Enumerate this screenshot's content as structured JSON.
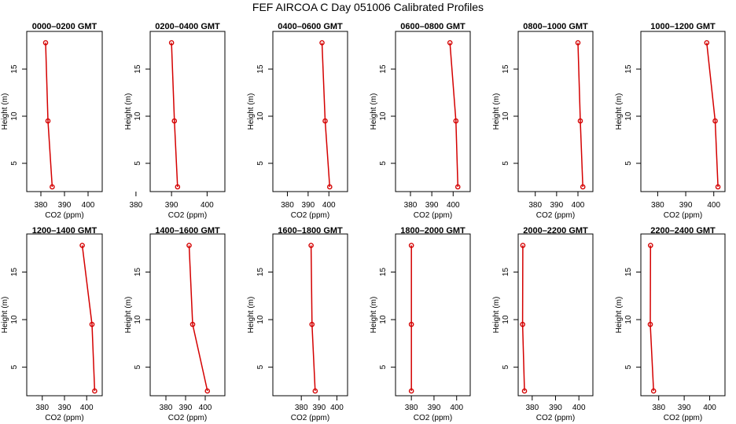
{
  "figure_title": "FEF AIRCOA C  Day 051006  Calibrated Profiles",
  "chart_data": [
    {
      "type": "line",
      "title": "0000–0200 GMT",
      "xlabel": "CO2 (ppm)",
      "ylabel": "Height (m)",
      "xlim": [
        374,
        406
      ],
      "ylim": [
        2,
        19
      ],
      "xticks": [
        "380",
        "390",
        "400"
      ],
      "yticks": [
        "5",
        "10",
        "15"
      ],
      "grid": false,
      "series": [
        {
          "x": [
            382.0,
            383.0,
            384.8
          ],
          "y": [
            17.8,
            9.5,
            2.5
          ]
        }
      ]
    },
    {
      "type": "line",
      "title": "0200–0400 GMT",
      "xlabel": "CO2 (ppm)",
      "ylabel": "Height (m)",
      "xlim": [
        384,
        405
      ],
      "ylim": [
        2,
        19
      ],
      "xticks": [
        "380",
        "390",
        "400"
      ],
      "yticks": [
        "5",
        "10",
        "15"
      ],
      "grid": false,
      "series": [
        {
          "x": [
            390.0,
            390.8,
            391.7
          ],
          "y": [
            17.8,
            9.5,
            2.5
          ]
        }
      ]
    },
    {
      "type": "line",
      "title": "0400–0600 GMT",
      "xlabel": "CO2 (ppm)",
      "ylabel": "Height (m)",
      "xlim": [
        373,
        409
      ],
      "ylim": [
        2,
        19
      ],
      "xticks": [
        "380",
        "390",
        "400"
      ],
      "yticks": [
        "5",
        "10",
        "15"
      ],
      "grid": false,
      "series": [
        {
          "x": [
            396.7,
            398.2,
            400.4
          ],
          "y": [
            17.8,
            9.5,
            2.5
          ]
        }
      ]
    },
    {
      "type": "line",
      "title": "0600–0800 GMT",
      "xlabel": "CO2 (ppm)",
      "ylabel": "Height (m)",
      "xlim": [
        373,
        408
      ],
      "ylim": [
        2,
        19
      ],
      "xticks": [
        "380",
        "390",
        "400"
      ],
      "yticks": [
        "5",
        "10",
        "15"
      ],
      "grid": false,
      "series": [
        {
          "x": [
            398.5,
            401.3,
            402.2
          ],
          "y": [
            17.8,
            9.5,
            2.5
          ]
        }
      ]
    },
    {
      "type": "line",
      "title": "0800–1000 GMT",
      "xlabel": "CO2 (ppm)",
      "ylabel": "Height (m)",
      "xlim": [
        372,
        407
      ],
      "ylim": [
        2,
        19
      ],
      "xticks": [
        "380",
        "390",
        "400"
      ],
      "yticks": [
        "5",
        "10",
        "15"
      ],
      "grid": false,
      "series": [
        {
          "x": [
            400.0,
            401.1,
            402.3
          ],
          "y": [
            17.8,
            9.5,
            2.5
          ]
        }
      ]
    },
    {
      "type": "line",
      "title": "1000–1200 GMT",
      "xlabel": "CO2 (ppm)",
      "ylabel": "Height (m)",
      "xlim": [
        374,
        404
      ],
      "ylim": [
        2,
        19
      ],
      "xticks": [
        "380",
        "390",
        "400"
      ],
      "yticks": [
        "5",
        "10",
        "15"
      ],
      "grid": false,
      "series": [
        {
          "x": [
            397.5,
            400.5,
            401.5
          ],
          "y": [
            17.8,
            9.5,
            2.5
          ]
        }
      ]
    },
    {
      "type": "line",
      "title": "1200–1400 GMT",
      "xlabel": "CO2 (ppm)",
      "ylabel": "Height (m)",
      "xlim": [
        373,
        407
      ],
      "ylim": [
        2,
        19
      ],
      "xticks": [
        "380",
        "390",
        "400"
      ],
      "yticks": [
        "5",
        "10",
        "15"
      ],
      "grid": false,
      "series": [
        {
          "x": [
            398.0,
            402.4,
            403.6
          ],
          "y": [
            17.8,
            9.5,
            2.5
          ]
        }
      ]
    },
    {
      "type": "line",
      "title": "1400–1600 GMT",
      "xlabel": "CO2 (ppm)",
      "ylabel": "Height (m)",
      "xlim": [
        372,
        410
      ],
      "ylim": [
        2,
        19
      ],
      "xticks": [
        "380",
        "390",
        "400"
      ],
      "yticks": [
        "5",
        "10",
        "15"
      ],
      "grid": false,
      "series": [
        {
          "x": [
            391.8,
            393.6,
            401.1
          ],
          "y": [
            17.8,
            9.5,
            2.5
          ]
        }
      ]
    },
    {
      "type": "line",
      "title": "1600–1800 GMT",
      "xlabel": "CO2 (ppm)",
      "ylabel": "Height (m)",
      "xlim": [
        364,
        406
      ],
      "ylim": [
        2,
        19
      ],
      "xticks": [
        "380",
        "390",
        "400"
      ],
      "yticks": [
        "5",
        "10",
        "15"
      ],
      "grid": false,
      "series": [
        {
          "x": [
            385.5,
            386.0,
            387.8
          ],
          "y": [
            17.8,
            9.5,
            2.5
          ]
        }
      ]
    },
    {
      "type": "line",
      "title": "1800–2000 GMT",
      "xlabel": "CO2 (ppm)",
      "ylabel": "Height (m)",
      "xlim": [
        373,
        406
      ],
      "ylim": [
        2,
        19
      ],
      "xticks": [
        "380",
        "390",
        "400"
      ],
      "yticks": [
        "5",
        "10",
        "15"
      ],
      "grid": false,
      "series": [
        {
          "x": [
            380.0,
            380.0,
            380.0
          ],
          "y": [
            17.8,
            9.5,
            2.5
          ]
        }
      ]
    },
    {
      "type": "line",
      "title": "2000–2200 GMT",
      "xlabel": "CO2 (ppm)",
      "ylabel": "Height (m)",
      "xlim": [
        374,
        406
      ],
      "ylim": [
        2,
        19
      ],
      "xticks": [
        "380",
        "390",
        "400"
      ],
      "yticks": [
        "5",
        "10",
        "15"
      ],
      "grid": false,
      "series": [
        {
          "x": [
            376.0,
            375.9,
            376.7
          ],
          "y": [
            17.8,
            9.5,
            2.5
          ]
        }
      ]
    },
    {
      "type": "line",
      "title": "2200–2400 GMT",
      "xlabel": "CO2 (ppm)",
      "ylabel": "Height (m)",
      "xlim": [
        373,
        406
      ],
      "ylim": [
        2,
        19
      ],
      "xticks": [
        "380",
        "390",
        "400"
      ],
      "yticks": [
        "5",
        "10",
        "15"
      ],
      "grid": false,
      "series": [
        {
          "x": [
            376.8,
            376.7,
            378.0
          ],
          "y": [
            17.8,
            9.5,
            2.5
          ]
        }
      ]
    }
  ],
  "colors": {
    "series": "#d40000",
    "axes": "#000000",
    "background": "#ffffff"
  }
}
